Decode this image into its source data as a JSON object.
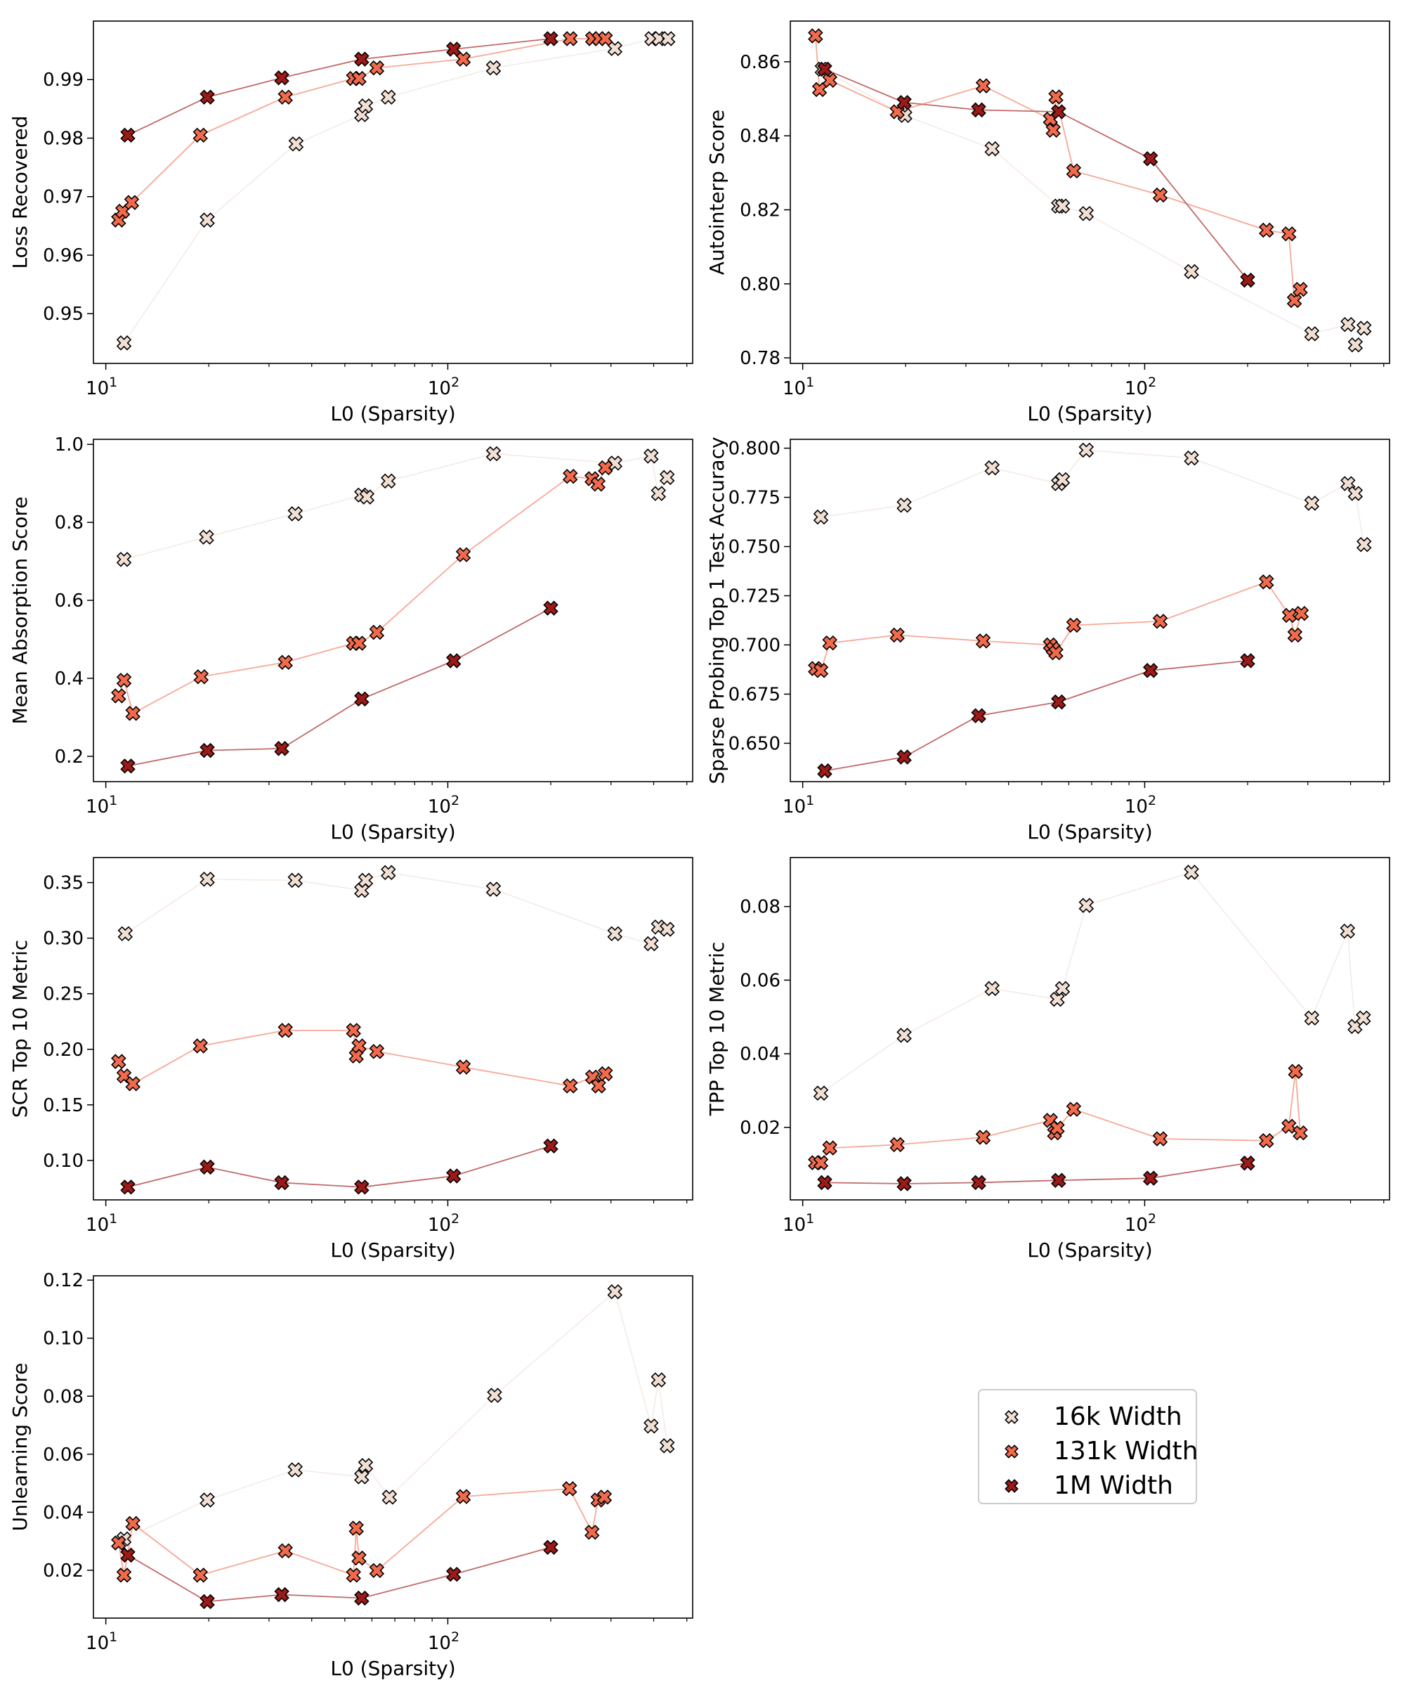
{
  "figure": {
    "title": ""
  },
  "colors": {
    "w16k": "#f1dfd4",
    "w131k": "#f26a4c",
    "w1m": "#9c1a18",
    "w16k_line": "#f4e8e1",
    "w131k_line": "#f7a898",
    "w1m_line": "#c06a68",
    "marker_edge": "#000000"
  },
  "legend": {
    "placement": "center (empty panel)",
    "items": [
      {
        "key": "w16k",
        "label": "16k Width"
      },
      {
        "key": "w131k",
        "label": "131k Width"
      },
      {
        "key": "w1m",
        "label": "1M Width"
      }
    ]
  },
  "chart_data": [
    {
      "type": "scatter",
      "title": "",
      "xlabel": "L0 (Sparsity)",
      "ylabel": "Loss Recovered",
      "xscale": "log",
      "xlim": [
        9.2,
        520
      ],
      "ylim": [
        0.9415,
        1.0
      ],
      "xticks": [
        10,
        100
      ],
      "xtick_labels": [
        "10^1",
        "10^2"
      ],
      "yticks": [
        0.95,
        0.96,
        0.97,
        0.98,
        0.99
      ],
      "ytick_labels": [
        "0.95",
        "0.96",
        "0.97",
        "0.98",
        "0.99"
      ],
      "grid": false,
      "series": [
        {
          "name": "16k Width",
          "key": "w16k",
          "x": [
            11.3,
            19.8,
            36.0,
            56.0,
            57.5,
            67.0,
            136.0,
            308.0,
            395.0,
            415.0,
            440.0
          ],
          "y": [
            0.945,
            0.966,
            0.979,
            0.984,
            0.9855,
            0.987,
            0.992,
            0.9953,
            0.997,
            0.997,
            0.997
          ]
        },
        {
          "name": "131k Width",
          "key": "w131k",
          "x": [
            10.9,
            11.2,
            11.9,
            18.9,
            33.5,
            53.0,
            55.0,
            62.0,
            111.0,
            228.0,
            265.0,
            277.0,
            289.0
          ],
          "y": [
            0.966,
            0.9675,
            0.969,
            0.9805,
            0.987,
            0.9902,
            0.9902,
            0.992,
            0.9935,
            0.997,
            0.997,
            0.997,
            0.997
          ]
        },
        {
          "name": "1M Width",
          "key": "w1m",
          "x": [
            11.6,
            19.8,
            32.7,
            56.0,
            104.0,
            200.0
          ],
          "y": [
            0.9805,
            0.987,
            0.9903,
            0.9935,
            0.9952,
            0.997
          ]
        }
      ]
    },
    {
      "type": "scatter",
      "title": "",
      "xlabel": "L0 (Sparsity)",
      "ylabel": "Autointerp Score",
      "xscale": "log",
      "xlim": [
        9.2,
        520
      ],
      "ylim": [
        0.7785,
        0.871
      ],
      "xticks": [
        10,
        100
      ],
      "xtick_labels": [
        "10^1",
        "10^2"
      ],
      "yticks": [
        0.78,
        0.8,
        0.82,
        0.84,
        0.86
      ],
      "ytick_labels": [
        "0.78",
        "0.80",
        "0.82",
        "0.84",
        "0.86"
      ],
      "grid": false,
      "series": [
        {
          "name": "16k Width",
          "key": "w16k",
          "x": [
            11.4,
            19.9,
            35.8,
            56.0,
            57.5,
            67.5,
            137.0,
            308.0,
            393.0,
            413.0,
            438.0
          ],
          "y": [
            0.858,
            0.8455,
            0.8365,
            0.821,
            0.821,
            0.819,
            0.8033,
            0.7865,
            0.789,
            0.7835,
            0.788
          ]
        },
        {
          "name": "131k Width",
          "key": "w131k",
          "x": [
            10.9,
            11.2,
            12.0,
            18.9,
            33.7,
            53.0,
            54.0,
            55.0,
            62.0,
            111.0,
            227.0,
            264.0,
            274.0,
            285.0
          ],
          "y": [
            0.867,
            0.8525,
            0.855,
            0.8465,
            0.8535,
            0.8445,
            0.8415,
            0.8505,
            0.8305,
            0.824,
            0.8145,
            0.8135,
            0.7955,
            0.7985
          ]
        },
        {
          "name": "1M Width",
          "key": "w1m",
          "x": [
            11.6,
            19.8,
            32.7,
            56.0,
            104.0,
            200.0
          ],
          "y": [
            0.858,
            0.849,
            0.847,
            0.8465,
            0.8338,
            0.801
          ]
        }
      ]
    },
    {
      "type": "scatter",
      "title": "",
      "xlabel": "L0 (Sparsity)",
      "ylabel": "Mean Absorption Score",
      "xscale": "log",
      "xlim": [
        9.2,
        520
      ],
      "ylim": [
        0.135,
        1.013
      ],
      "xticks": [
        10,
        100
      ],
      "xtick_labels": [
        "10^1",
        "10^2"
      ],
      "yticks": [
        0.2,
        0.4,
        0.6,
        0.8,
        1.0
      ],
      "ytick_labels": [
        "0.2",
        "0.4",
        "0.6",
        "0.8",
        "1.0"
      ],
      "grid": false,
      "series": [
        {
          "name": "16k Width",
          "key": "w16k",
          "x": [
            11.3,
            19.7,
            35.8,
            56.0,
            58.0,
            67.0,
            136.0,
            308.0,
            393.0,
            413.0,
            438.0
          ],
          "y": [
            0.705,
            0.762,
            0.822,
            0.87,
            0.865,
            0.906,
            0.976,
            0.952,
            0.97,
            0.874,
            0.915
          ]
        },
        {
          "name": "131k Width",
          "key": "w131k",
          "x": [
            10.9,
            11.3,
            12.0,
            19.0,
            33.5,
            53.0,
            55.0,
            62.0,
            111.0,
            228.0,
            264.0,
            275.0,
            289.0
          ],
          "y": [
            0.355,
            0.395,
            0.31,
            0.404,
            0.441,
            0.49,
            0.49,
            0.518,
            0.717,
            0.918,
            0.912,
            0.898,
            0.94
          ]
        },
        {
          "name": "1M Width",
          "key": "w1m",
          "x": [
            11.6,
            19.8,
            32.7,
            56.0,
            104.0,
            200.0
          ],
          "y": [
            0.175,
            0.215,
            0.22,
            0.347,
            0.445,
            0.58
          ]
        }
      ]
    },
    {
      "type": "scatter",
      "title": "",
      "xlabel": "L0 (Sparsity)",
      "ylabel": "Sparse Probing Top 1 Test Accuracy",
      "xscale": "log",
      "xlim": [
        9.2,
        520
      ],
      "ylim": [
        0.6305,
        0.8045
      ],
      "xticks": [
        10,
        100
      ],
      "xtick_labels": [
        "10^1",
        "10^2"
      ],
      "yticks": [
        0.65,
        0.675,
        0.7,
        0.725,
        0.75,
        0.775,
        0.8
      ],
      "ytick_labels": [
        "0.650",
        "0.675",
        "0.700",
        "0.725",
        "0.750",
        "0.775",
        "0.800"
      ],
      "grid": false,
      "series": [
        {
          "name": "16k Width",
          "key": "w16k",
          "x": [
            11.3,
            19.8,
            35.8,
            56.0,
            57.5,
            67.5,
            137.0,
            308.0,
            393.0,
            413.0,
            438.0
          ],
          "y": [
            0.765,
            0.771,
            0.79,
            0.782,
            0.784,
            0.799,
            0.795,
            0.772,
            0.782,
            0.777,
            0.751
          ]
        },
        {
          "name": "131k Width",
          "key": "w131k",
          "x": [
            10.9,
            11.3,
            12.0,
            18.9,
            33.7,
            53.0,
            54.0,
            55.0,
            62.0,
            111.0,
            227.0,
            265.0,
            275.0,
            287.0
          ],
          "y": [
            0.688,
            0.687,
            0.701,
            0.705,
            0.702,
            0.7,
            0.698,
            0.696,
            0.71,
            0.712,
            0.732,
            0.715,
            0.705,
            0.716
          ]
        },
        {
          "name": "1M Width",
          "key": "w1m",
          "x": [
            11.6,
            19.8,
            32.7,
            56.0,
            104.0,
            200.0
          ],
          "y": [
            0.636,
            0.643,
            0.664,
            0.671,
            0.687,
            0.692
          ]
        }
      ]
    },
    {
      "type": "scatter",
      "title": "",
      "xlabel": "L0 (Sparsity)",
      "ylabel": "SCR Top 10 Metric",
      "xscale": "log",
      "xlim": [
        9.2,
        520
      ],
      "ylim": [
        0.0645,
        0.3725
      ],
      "xticks": [
        10,
        100
      ],
      "xtick_labels": [
        "10^1",
        "10^2"
      ],
      "yticks": [
        0.1,
        0.15,
        0.2,
        0.25,
        0.3,
        0.35
      ],
      "ytick_labels": [
        "0.10",
        "0.15",
        "0.20",
        "0.25",
        "0.30",
        "0.35"
      ],
      "grid": false,
      "series": [
        {
          "name": "16k Width",
          "key": "w16k",
          "x": [
            11.4,
            19.8,
            35.8,
            56.0,
            57.5,
            67.0,
            136.0,
            308.0,
            393.0,
            413.0,
            438.0
          ],
          "y": [
            0.304,
            0.353,
            0.352,
            0.343,
            0.352,
            0.359,
            0.344,
            0.304,
            0.295,
            0.31,
            0.308
          ]
        },
        {
          "name": "131k Width",
          "key": "w131k",
          "x": [
            10.9,
            11.3,
            12.0,
            18.9,
            33.5,
            53.0,
            54.0,
            55.0,
            62.0,
            111.0,
            228.0,
            265.0,
            276.0,
            289.0
          ],
          "y": [
            0.189,
            0.176,
            0.169,
            0.203,
            0.217,
            0.217,
            0.194,
            0.203,
            0.198,
            0.184,
            0.167,
            0.175,
            0.167,
            0.178
          ]
        },
        {
          "name": "1M Width",
          "key": "w1m",
          "x": [
            11.6,
            19.8,
            32.7,
            56.0,
            104.0,
            200.0
          ],
          "y": [
            0.076,
            0.094,
            0.08,
            0.076,
            0.086,
            0.113
          ]
        }
      ]
    },
    {
      "type": "scatter",
      "title": "",
      "xlabel": "L0 (Sparsity)",
      "ylabel": "TPP Top 10 Metric",
      "xscale": "log",
      "xlim": [
        9.2,
        520
      ],
      "ylim": [
        0.0003,
        0.0933
      ],
      "xticks": [
        10,
        100
      ],
      "xtick_labels": [
        "10^1",
        "10^2"
      ],
      "yticks": [
        0.02,
        0.04,
        0.06,
        0.08
      ],
      "ytick_labels": [
        "0.02",
        "0.04",
        "0.06",
        "0.08"
      ],
      "grid": false,
      "series": [
        {
          "name": "16k Width",
          "key": "w16k",
          "x": [
            11.3,
            19.8,
            35.8,
            55.5,
            57.5,
            67.5,
            137.0,
            308.0,
            392.0,
            412.0,
            436.0
          ],
          "y": [
            0.0293,
            0.045,
            0.0577,
            0.0548,
            0.0577,
            0.0803,
            0.0893,
            0.0497,
            0.0733,
            0.0474,
            0.0497
          ]
        },
        {
          "name": "131k Width",
          "key": "w131k",
          "x": [
            10.9,
            11.3,
            12.0,
            18.9,
            33.7,
            53.0,
            54.5,
            55.5,
            62.0,
            111.0,
            227.0,
            264.0,
            276.0,
            285.0
          ],
          "y": [
            0.0104,
            0.0104,
            0.0144,
            0.0153,
            0.0173,
            0.0219,
            0.0185,
            0.0198,
            0.0249,
            0.0169,
            0.0164,
            0.0203,
            0.0352,
            0.0185
          ]
        },
        {
          "name": "1M Width",
          "key": "w1m",
          "x": [
            11.6,
            19.8,
            32.7,
            56.0,
            104.0,
            200.0
          ],
          "y": [
            0.005,
            0.0047,
            0.005,
            0.0056,
            0.0062,
            0.0103
          ]
        }
      ]
    },
    {
      "type": "scatter",
      "title": "",
      "xlabel": "L0 (Sparsity)",
      "ylabel": "Unlearning Score",
      "xscale": "log",
      "xlim": [
        9.2,
        520
      ],
      "ylim": [
        0.0035,
        0.1215
      ],
      "xticks": [
        10,
        100
      ],
      "xtick_labels": [
        "10^1",
        "10^2"
      ],
      "yticks": [
        0.02,
        0.04,
        0.06,
        0.08,
        0.1,
        0.12
      ],
      "ytick_labels": [
        "0.02",
        "0.04",
        "0.06",
        "0.08",
        "0.10",
        "0.12"
      ],
      "grid": false,
      "series": [
        {
          "name": "16k Width",
          "key": "w16k",
          "x": [
            11.3,
            19.8,
            35.8,
            56.0,
            57.5,
            67.5,
            137.0,
            308.0,
            393.0,
            413.0,
            438.0
          ],
          "y": [
            0.0308,
            0.0442,
            0.0546,
            0.0522,
            0.0561,
            0.0452,
            0.0803,
            0.116,
            0.0697,
            0.0856,
            0.0629
          ]
        },
        {
          "name": "131k Width",
          "key": "w131k",
          "x": [
            10.9,
            11.3,
            12.0,
            18.9,
            33.5,
            53.0,
            54.0,
            55.0,
            62.0,
            111.0,
            227.0,
            264.0,
            275.0,
            287.0
          ],
          "y": [
            0.0294,
            0.0183,
            0.0361,
            0.0183,
            0.0267,
            0.0183,
            0.0345,
            0.0242,
            0.0199,
            0.0454,
            0.0481,
            0.0331,
            0.0442,
            0.0452
          ]
        },
        {
          "name": "1M Width",
          "key": "w1m",
          "x": [
            11.6,
            19.8,
            32.7,
            56.0,
            104.0,
            200.0
          ],
          "y": [
            0.0252,
            0.0092,
            0.0116,
            0.0104,
            0.0186,
            0.0279
          ]
        }
      ]
    }
  ]
}
